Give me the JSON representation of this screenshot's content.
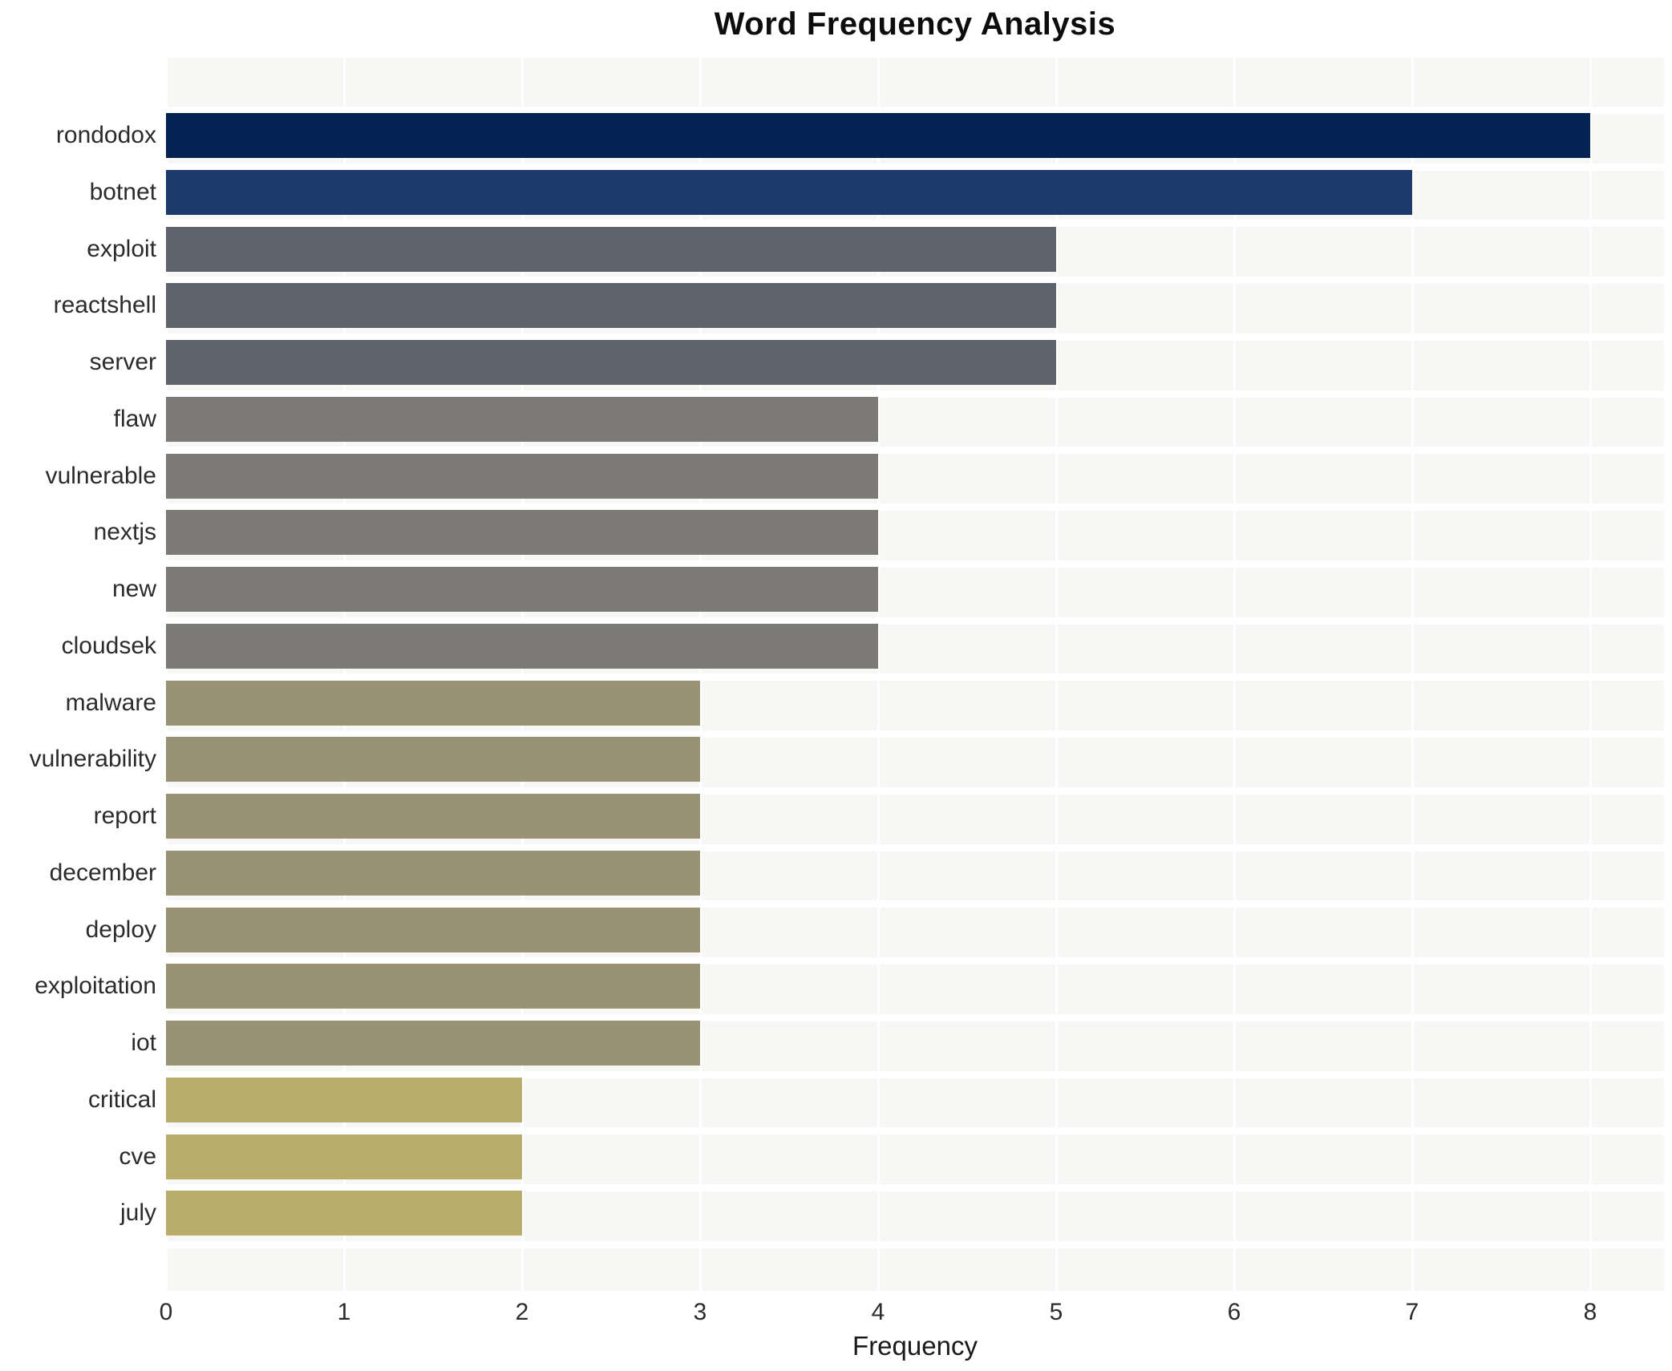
{
  "title": "Word Frequency Analysis",
  "chart_data": {
    "type": "bar",
    "orientation": "horizontal",
    "title": "Word Frequency Analysis",
    "xlabel": "Frequency",
    "ylabel": "",
    "xlim": [
      0,
      8.42
    ],
    "x_ticks": [
      0,
      1,
      2,
      3,
      4,
      5,
      6,
      7,
      8
    ],
    "grid": "white vertical gridlines at integer ticks on light gray panel; white separators between bar rows",
    "legend": "none",
    "panel_background": "#f7f7f6",
    "gridline_color": "#ffffff",
    "categories": [
      "rondodox",
      "botnet",
      "exploit",
      "reactshell",
      "server",
      "flaw",
      "vulnerable",
      "nextjs",
      "new",
      "cloudsek",
      "malware",
      "vulnerability",
      "report",
      "december",
      "deploy",
      "exploitation",
      "iot",
      "critical",
      "cve",
      "july"
    ],
    "values": [
      8,
      7,
      5,
      5,
      5,
      4,
      4,
      4,
      4,
      4,
      3,
      3,
      3,
      3,
      3,
      3,
      3,
      2,
      2,
      2
    ],
    "bar_colors": [
      "#032352",
      "#1d3a6d",
      "#5e636e",
      "#5e636e",
      "#5e636e",
      "#7b7a76",
      "#7b7a76",
      "#7b7a76",
      "#7b7a76",
      "#7b7a76",
      "#999274",
      "#999274",
      "#999274",
      "#999274",
      "#999274",
      "#999274",
      "#999274",
      "#b9ad6c",
      "#b9ad6c",
      "#b9ad6c"
    ]
  }
}
